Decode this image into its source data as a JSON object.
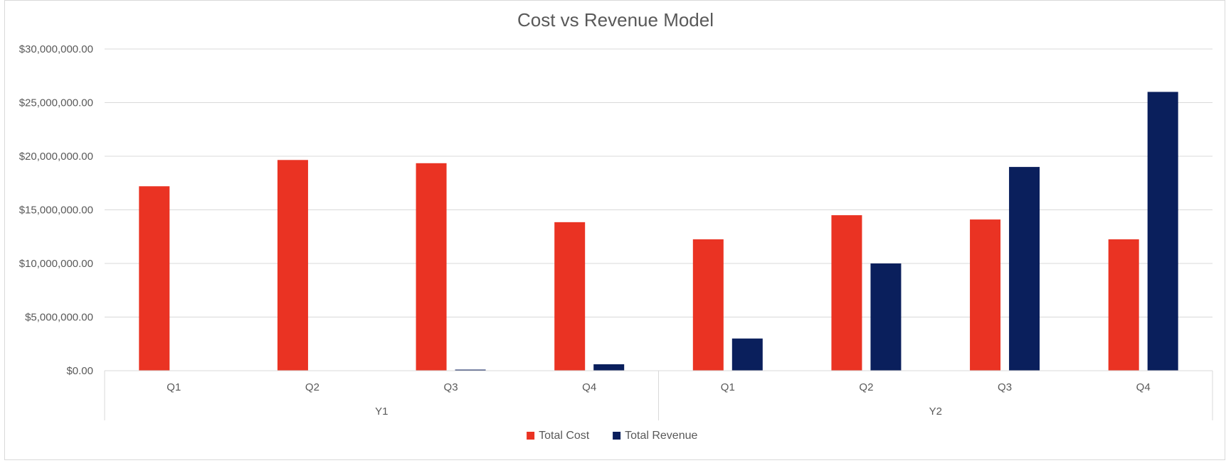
{
  "chart_data": {
    "type": "bar",
    "title": "Cost vs Revenue Model",
    "xlabel": "",
    "ylabel": "",
    "ylim": [
      0,
      30000000
    ],
    "y_ticks": [
      0,
      5000000,
      10000000,
      15000000,
      20000000,
      25000000,
      30000000
    ],
    "y_tick_labels": [
      "$0.00",
      "$5,000,000.00",
      "$10,000,000.00",
      "$15,000,000.00",
      "$20,000,000.00",
      "$25,000,000.00",
      "$30,000,000.00"
    ],
    "grid": true,
    "legend_position": "bottom",
    "groups": [
      {
        "label": "Y1",
        "categories": [
          "Q1",
          "Q2",
          "Q3",
          "Q4"
        ]
      },
      {
        "label": "Y2",
        "categories": [
          "Q1",
          "Q2",
          "Q3",
          "Q4"
        ]
      }
    ],
    "series": [
      {
        "name": "Total Cost",
        "color": "#EA3323",
        "values": [
          17200000,
          19650000,
          19350000,
          13850000,
          12250000,
          14500000,
          14100000,
          12250000
        ]
      },
      {
        "name": "Total Revenue",
        "color": "#0A1F5C",
        "values": [
          0,
          0,
          100000,
          600000,
          3000000,
          10000000,
          19000000,
          26000000
        ]
      }
    ]
  }
}
